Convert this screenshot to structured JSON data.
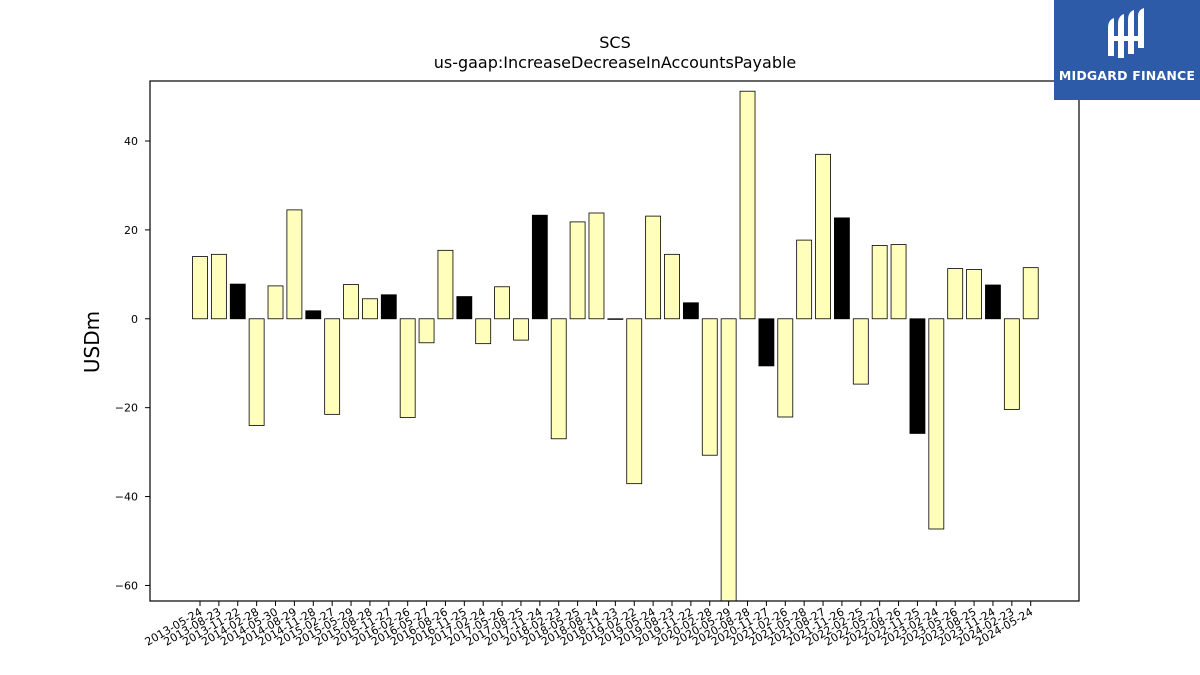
{
  "brand": {
    "name": "MIDGARD FINANCE",
    "bg_color": "#2d5ba8",
    "icon": "midgard-logo-icon"
  },
  "chart_data": {
    "type": "bar",
    "title": "SCS",
    "subtitle": "us-gaap:IncreaseDecreaseInAccountsPayable",
    "xlabel": "",
    "ylabel": "USDm",
    "ylim": [
      -63.5,
      53.5
    ],
    "yticks": [
      -60,
      -40,
      -20,
      0,
      20,
      40
    ],
    "colors": {
      "fiscal_q1": "#000000",
      "other": "#ffffbb",
      "edge": "#000000"
    },
    "categories": [
      "2013-05-24",
      "2013-08-23",
      "2013-11-22",
      "2014-02-28",
      "2014-05-30",
      "2014-08-29",
      "2014-11-28",
      "2015-02-27",
      "2015-05-29",
      "2015-08-28",
      "2015-11-27",
      "2016-02-26",
      "2016-05-27",
      "2016-08-26",
      "2016-11-25",
      "2017-02-24",
      "2017-05-26",
      "2017-08-25",
      "2017-11-24",
      "2018-02-23",
      "2018-05-25",
      "2018-08-24",
      "2018-11-23",
      "2019-02-22",
      "2019-05-24",
      "2019-08-23",
      "2019-11-22",
      "2020-02-28",
      "2020-05-29",
      "2020-08-28",
      "2020-11-27",
      "2021-02-26",
      "2021-05-28",
      "2021-08-27",
      "2021-11-26",
      "2022-02-25",
      "2022-05-27",
      "2022-08-26",
      "2022-11-25",
      "2023-02-24",
      "2023-05-26",
      "2023-08-25",
      "2023-11-24",
      "2024-02-23",
      "2024-05-24"
    ],
    "values": [
      14.0,
      14.5,
      7.8,
      -24.0,
      7.4,
      24.5,
      1.8,
      -21.5,
      7.7,
      4.5,
      5.4,
      -22.2,
      -5.4,
      15.4,
      5.0,
      -5.6,
      7.2,
      -4.8,
      23.3,
      -27.0,
      21.8,
      23.8,
      0.0,
      -37.1,
      23.1,
      14.5,
      3.6,
      -30.7,
      -64.0,
      51.2,
      -10.6,
      -22.1,
      17.7,
      37.0,
      22.7,
      -14.7,
      16.5,
      16.7,
      -25.8,
      -47.3,
      11.3,
      11.1,
      7.6,
      -20.4,
      11.5
    ],
    "highlight": [
      false,
      false,
      true,
      false,
      false,
      false,
      true,
      false,
      false,
      false,
      true,
      false,
      false,
      false,
      true,
      false,
      false,
      false,
      true,
      false,
      false,
      false,
      false,
      false,
      false,
      false,
      true,
      false,
      false,
      false,
      true,
      false,
      false,
      false,
      true,
      false,
      false,
      false,
      true,
      false,
      false,
      false,
      true,
      false,
      false
    ]
  }
}
